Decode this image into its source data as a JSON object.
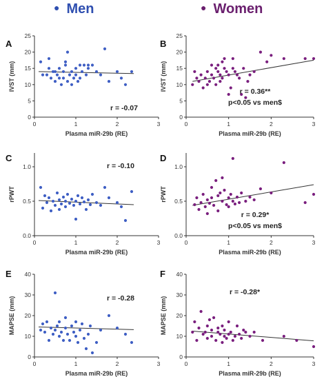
{
  "legend": [
    {
      "label": "Men",
      "color": "#3f5fc4"
    },
    {
      "label": "Women",
      "color": "#7a1f7e"
    }
  ],
  "chart_data": [
    {
      "panel": "A",
      "type": "scatter",
      "series_color": "#3f5fc4",
      "xlabel": "Plasma miR-29b (RE)",
      "ylabel": "IVST (mm)",
      "xlim": [
        0,
        3
      ],
      "ylim": [
        0,
        25
      ],
      "xticks": [
        "0",
        "1",
        "2",
        "3"
      ],
      "yticks": [
        "0",
        "5",
        "10",
        "15",
        "20",
        "25"
      ],
      "annotation": [
        "r = -0.07"
      ],
      "trend": [
        [
          0.1,
          14.0
        ],
        [
          2.4,
          13.4
        ]
      ],
      "points": [
        [
          0.15,
          17
        ],
        [
          0.2,
          13
        ],
        [
          0.3,
          13
        ],
        [
          0.35,
          15
        ],
        [
          0.35,
          18
        ],
        [
          0.4,
          12
        ],
        [
          0.45,
          14
        ],
        [
          0.5,
          11
        ],
        [
          0.5,
          14
        ],
        [
          0.55,
          13
        ],
        [
          0.6,
          12
        ],
        [
          0.6,
          15
        ],
        [
          0.65,
          10
        ],
        [
          0.7,
          12
        ],
        [
          0.7,
          14
        ],
        [
          0.75,
          17
        ],
        [
          0.75,
          16
        ],
        [
          0.8,
          20
        ],
        [
          0.8,
          11
        ],
        [
          0.85,
          13
        ],
        [
          0.9,
          10
        ],
        [
          0.9,
          14
        ],
        [
          0.95,
          12
        ],
        [
          1.0,
          15
        ],
        [
          1.0,
          13
        ],
        [
          1.05,
          11
        ],
        [
          1.1,
          16
        ],
        [
          1.1,
          12
        ],
        [
          1.15,
          14
        ],
        [
          1.2,
          16
        ],
        [
          1.25,
          13
        ],
        [
          1.3,
          15
        ],
        [
          1.3,
          16
        ],
        [
          1.4,
          16
        ],
        [
          1.5,
          14
        ],
        [
          1.6,
          13
        ],
        [
          1.7,
          21
        ],
        [
          1.8,
          11
        ],
        [
          2.0,
          14
        ],
        [
          2.1,
          12
        ],
        [
          2.2,
          10
        ],
        [
          2.35,
          14
        ]
      ]
    },
    {
      "panel": "B",
      "type": "scatter",
      "series_color": "#7a1f7e",
      "xlabel": "Plasma miR-29b (RE)",
      "ylabel": "IVST (mm)",
      "xlim": [
        0,
        3
      ],
      "ylim": [
        0,
        25
      ],
      "xticks": [
        "0",
        "1",
        "2",
        "3"
      ],
      "yticks": [
        "0",
        "5",
        "10",
        "15",
        "20",
        "25"
      ],
      "annotation": [
        "r = 0.36**",
        "p<0.05 vs men$"
      ],
      "trend": [
        [
          0.15,
          11.0
        ],
        [
          3.0,
          17.5
        ]
      ],
      "points": [
        [
          0.15,
          10
        ],
        [
          0.2,
          14
        ],
        [
          0.25,
          12
        ],
        [
          0.3,
          11
        ],
        [
          0.35,
          13
        ],
        [
          0.4,
          9
        ],
        [
          0.45,
          12
        ],
        [
          0.5,
          14
        ],
        [
          0.5,
          10
        ],
        [
          0.55,
          11
        ],
        [
          0.6,
          16
        ],
        [
          0.6,
          13
        ],
        [
          0.65,
          12
        ],
        [
          0.7,
          10
        ],
        [
          0.7,
          15
        ],
        [
          0.75,
          14
        ],
        [
          0.75,
          16
        ],
        [
          0.8,
          11
        ],
        [
          0.8,
          13
        ],
        [
          0.85,
          12
        ],
        [
          0.85,
          17
        ],
        [
          0.9,
          18
        ],
        [
          0.9,
          15
        ],
        [
          0.95,
          14
        ],
        [
          1.0,
          13
        ],
        [
          1.0,
          7
        ],
        [
          1.05,
          9
        ],
        [
          1.1,
          15
        ],
        [
          1.1,
          18
        ],
        [
          1.15,
          14
        ],
        [
          1.2,
          13
        ],
        [
          1.25,
          12
        ],
        [
          1.3,
          7
        ],
        [
          1.35,
          15
        ],
        [
          1.4,
          6
        ],
        [
          1.45,
          11
        ],
        [
          1.5,
          13
        ],
        [
          1.6,
          14
        ],
        [
          1.75,
          20
        ],
        [
          1.9,
          17
        ],
        [
          2.0,
          19
        ],
        [
          2.3,
          18
        ],
        [
          2.8,
          18
        ],
        [
          3.0,
          18
        ]
      ]
    },
    {
      "panel": "C",
      "type": "scatter",
      "series_color": "#3f5fc4",
      "xlabel": "Plasma miR-29b (RE)",
      "ylabel": "rPWT",
      "xlim": [
        0,
        3
      ],
      "ylim": [
        0,
        1.2
      ],
      "xticks": [
        "0",
        "1",
        "2",
        "3"
      ],
      "yticks": [
        "0.0",
        "0.5",
        "1.0"
      ],
      "annotation": [
        "r = -0.10"
      ],
      "trend": [
        [
          0.1,
          0.51
        ],
        [
          2.4,
          0.45
        ]
      ],
      "points": [
        [
          0.15,
          0.7
        ],
        [
          0.2,
          0.4
        ],
        [
          0.25,
          0.58
        ],
        [
          0.3,
          0.48
        ],
        [
          0.35,
          0.55
        ],
        [
          0.4,
          0.36
        ],
        [
          0.45,
          0.5
        ],
        [
          0.5,
          0.44
        ],
        [
          0.55,
          0.62
        ],
        [
          0.6,
          0.38
        ],
        [
          0.6,
          0.52
        ],
        [
          0.65,
          0.46
        ],
        [
          0.7,
          0.56
        ],
        [
          0.75,
          0.5
        ],
        [
          0.75,
          0.42
        ],
        [
          0.8,
          0.6
        ],
        [
          0.85,
          0.47
        ],
        [
          0.9,
          0.53
        ],
        [
          0.95,
          0.44
        ],
        [
          1.0,
          0.24
        ],
        [
          1.0,
          0.5
        ],
        [
          1.05,
          0.58
        ],
        [
          1.1,
          0.46
        ],
        [
          1.15,
          0.55
        ],
        [
          1.2,
          0.49
        ],
        [
          1.25,
          0.38
        ],
        [
          1.3,
          0.52
        ],
        [
          1.35,
          0.45
        ],
        [
          1.4,
          0.6
        ],
        [
          1.5,
          0.48
        ],
        [
          1.6,
          0.44
        ],
        [
          1.7,
          0.7
        ],
        [
          1.8,
          0.55
        ],
        [
          2.0,
          0.48
        ],
        [
          2.1,
          0.42
        ],
        [
          2.2,
          0.22
        ],
        [
          2.35,
          0.64
        ]
      ]
    },
    {
      "panel": "D",
      "type": "scatter",
      "series_color": "#7a1f7e",
      "xlabel": "Plasma miR-29b (RE)",
      "ylabel": "rPWT",
      "xlim": [
        0,
        3
      ],
      "ylim": [
        0,
        1.2
      ],
      "xticks": [
        "0",
        "1",
        "2",
        "3"
      ],
      "yticks": [
        "0.0",
        "0.5",
        "1.0"
      ],
      "annotation": [
        "r = 0.29*",
        "p<0.05 vs men$"
      ],
      "trend": [
        [
          0.15,
          0.44
        ],
        [
          3.0,
          0.74
        ]
      ],
      "points": [
        [
          0.2,
          0.45
        ],
        [
          0.25,
          0.55
        ],
        [
          0.3,
          0.38
        ],
        [
          0.35,
          0.48
        ],
        [
          0.4,
          0.6
        ],
        [
          0.45,
          0.42
        ],
        [
          0.5,
          0.52
        ],
        [
          0.5,
          0.32
        ],
        [
          0.55,
          0.47
        ],
        [
          0.6,
          0.7
        ],
        [
          0.6,
          0.55
        ],
        [
          0.65,
          0.44
        ],
        [
          0.7,
          0.8
        ],
        [
          0.75,
          0.58
        ],
        [
          0.75,
          0.36
        ],
        [
          0.8,
          0.62
        ],
        [
          0.85,
          0.5
        ],
        [
          0.85,
          0.84
        ],
        [
          0.9,
          0.66
        ],
        [
          0.95,
          0.45
        ],
        [
          1.0,
          0.55
        ],
        [
          1.0,
          0.42
        ],
        [
          1.05,
          0.6
        ],
        [
          1.1,
          1.12
        ],
        [
          1.1,
          0.5
        ],
        [
          1.15,
          0.46
        ],
        [
          1.2,
          0.56
        ],
        [
          1.25,
          0.48
        ],
        [
          1.3,
          0.62
        ],
        [
          1.4,
          0.5
        ],
        [
          1.5,
          0.56
        ],
        [
          1.6,
          0.52
        ],
        [
          1.75,
          0.68
        ],
        [
          2.0,
          0.62
        ],
        [
          2.3,
          1.06
        ],
        [
          2.8,
          0.48
        ],
        [
          3.0,
          0.6
        ]
      ]
    },
    {
      "panel": "E",
      "type": "scatter",
      "series_color": "#3f5fc4",
      "xlabel": "Plasma miR-29b (RE)",
      "ylabel": "MAPSE (mm)",
      "xlim": [
        0,
        3
      ],
      "ylim": [
        0,
        40
      ],
      "xticks": [
        "0",
        "1",
        "2",
        "3"
      ],
      "yticks": [
        "0",
        "10",
        "20",
        "30",
        "40"
      ],
      "annotation": [
        "r = -0.28"
      ],
      "trend": [
        [
          0.1,
          14.5
        ],
        [
          2.4,
          13.2
        ]
      ],
      "points": [
        [
          0.15,
          13
        ],
        [
          0.2,
          16
        ],
        [
          0.25,
          12
        ],
        [
          0.3,
          17
        ],
        [
          0.35,
          8
        ],
        [
          0.4,
          14
        ],
        [
          0.45,
          11
        ],
        [
          0.5,
          31
        ],
        [
          0.5,
          13
        ],
        [
          0.55,
          15
        ],
        [
          0.6,
          10
        ],
        [
          0.6,
          17
        ],
        [
          0.65,
          12
        ],
        [
          0.7,
          8
        ],
        [
          0.75,
          14
        ],
        [
          0.75,
          19
        ],
        [
          0.8,
          11
        ],
        [
          0.85,
          8
        ],
        [
          0.9,
          15
        ],
        [
          0.95,
          12
        ],
        [
          1.0,
          17
        ],
        [
          1.0,
          10
        ],
        [
          1.05,
          7
        ],
        [
          1.1,
          13
        ],
        [
          1.15,
          16
        ],
        [
          1.2,
          9
        ],
        [
          1.25,
          4
        ],
        [
          1.3,
          11
        ],
        [
          1.35,
          15
        ],
        [
          1.4,
          2
        ],
        [
          1.5,
          7
        ],
        [
          1.6,
          13
        ],
        [
          1.8,
          20
        ],
        [
          2.0,
          14
        ],
        [
          2.2,
          11
        ],
        [
          2.35,
          7
        ]
      ]
    },
    {
      "panel": "F",
      "type": "scatter",
      "series_color": "#7a1f7e",
      "xlabel": "Plasma miR-29b (RE)",
      "ylabel": "MAPSE (mm)",
      "xlim": [
        0,
        3
      ],
      "ylim": [
        0,
        40
      ],
      "xticks": [
        "0",
        "1",
        "2",
        "3"
      ],
      "yticks": [
        "0",
        "10",
        "20",
        "30",
        "40"
      ],
      "annotation": [
        "r = -0.28*"
      ],
      "trend": [
        [
          0.15,
          12.5
        ],
        [
          3.0,
          7.8
        ]
      ],
      "points": [
        [
          0.15,
          12
        ],
        [
          0.2,
          17
        ],
        [
          0.25,
          8
        ],
        [
          0.3,
          14
        ],
        [
          0.35,
          22
        ],
        [
          0.4,
          11
        ],
        [
          0.45,
          12
        ],
        [
          0.5,
          9
        ],
        [
          0.5,
          15
        ],
        [
          0.55,
          18
        ],
        [
          0.6,
          10
        ],
        [
          0.6,
          13
        ],
        [
          0.65,
          19
        ],
        [
          0.7,
          8
        ],
        [
          0.75,
          14
        ],
        [
          0.75,
          12
        ],
        [
          0.8,
          11
        ],
        [
          0.85,
          15
        ],
        [
          0.85,
          7
        ],
        [
          0.9,
          10
        ],
        [
          0.9,
          13
        ],
        [
          0.95,
          9
        ],
        [
          1.0,
          11
        ],
        [
          1.0,
          17
        ],
        [
          1.05,
          12
        ],
        [
          1.1,
          8
        ],
        [
          1.15,
          10
        ],
        [
          1.2,
          15
        ],
        [
          1.25,
          11
        ],
        [
          1.3,
          9
        ],
        [
          1.35,
          13
        ],
        [
          1.4,
          12
        ],
        [
          1.5,
          10
        ],
        [
          1.6,
          12
        ],
        [
          1.8,
          8
        ],
        [
          2.3,
          10
        ],
        [
          2.6,
          8
        ],
        [
          3.0,
          5
        ]
      ]
    }
  ]
}
